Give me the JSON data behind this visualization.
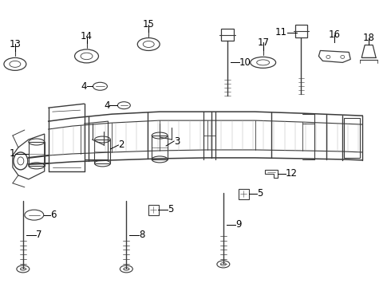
{
  "bg_color": "#ffffff",
  "line_color": "#2a2a2a",
  "label_color": "#000000",
  "figsize": [
    4.9,
    3.6
  ],
  "dpi": 100,
  "frame_color": "#3a3a3a",
  "label_fs": 8.5
}
